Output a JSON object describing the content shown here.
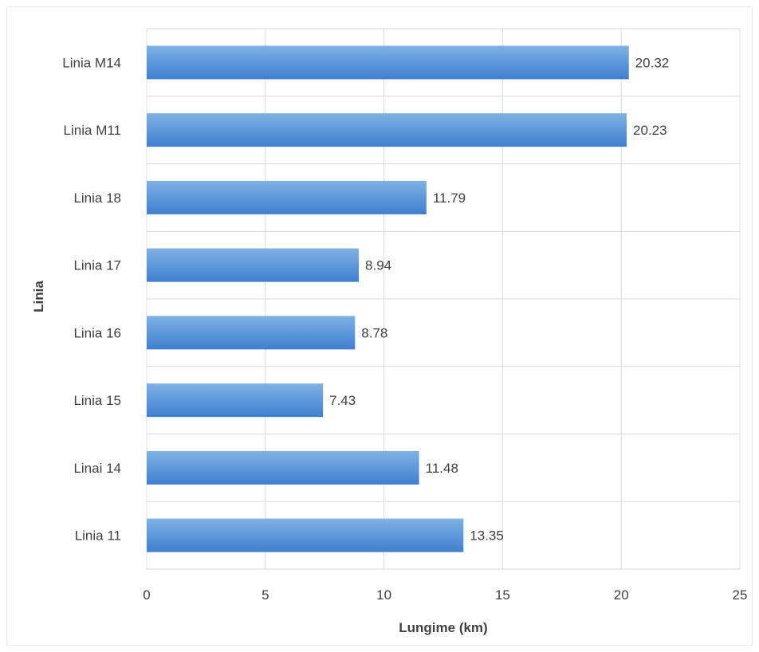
{
  "chart_data": {
    "type": "bar",
    "orientation": "horizontal",
    "categories": [
      "Linia 11",
      "Linai 14",
      "Linia 15",
      "Linia 16",
      "Linia 17",
      "Linia 18",
      "Linia M11",
      "Linia M14"
    ],
    "values": [
      13.35,
      11.48,
      7.43,
      8.78,
      8.94,
      11.79,
      20.23,
      20.32
    ],
    "data_labels": [
      "13.35",
      "11.48",
      "7.43",
      "8.78",
      "8.94",
      "11.79",
      "20.23",
      "20.32"
    ],
    "xlabel": "Lungime (km)",
    "ylabel": "Linia",
    "xlim": [
      0,
      25
    ],
    "xticks": [
      0,
      5,
      10,
      15,
      20,
      25
    ],
    "grid": true,
    "legend": "none",
    "colors": {
      "bar_top": "#7fb2e5",
      "bar_bottom": "#3f7fcf",
      "grid": "#d9d9d9",
      "text": "#404040"
    }
  }
}
